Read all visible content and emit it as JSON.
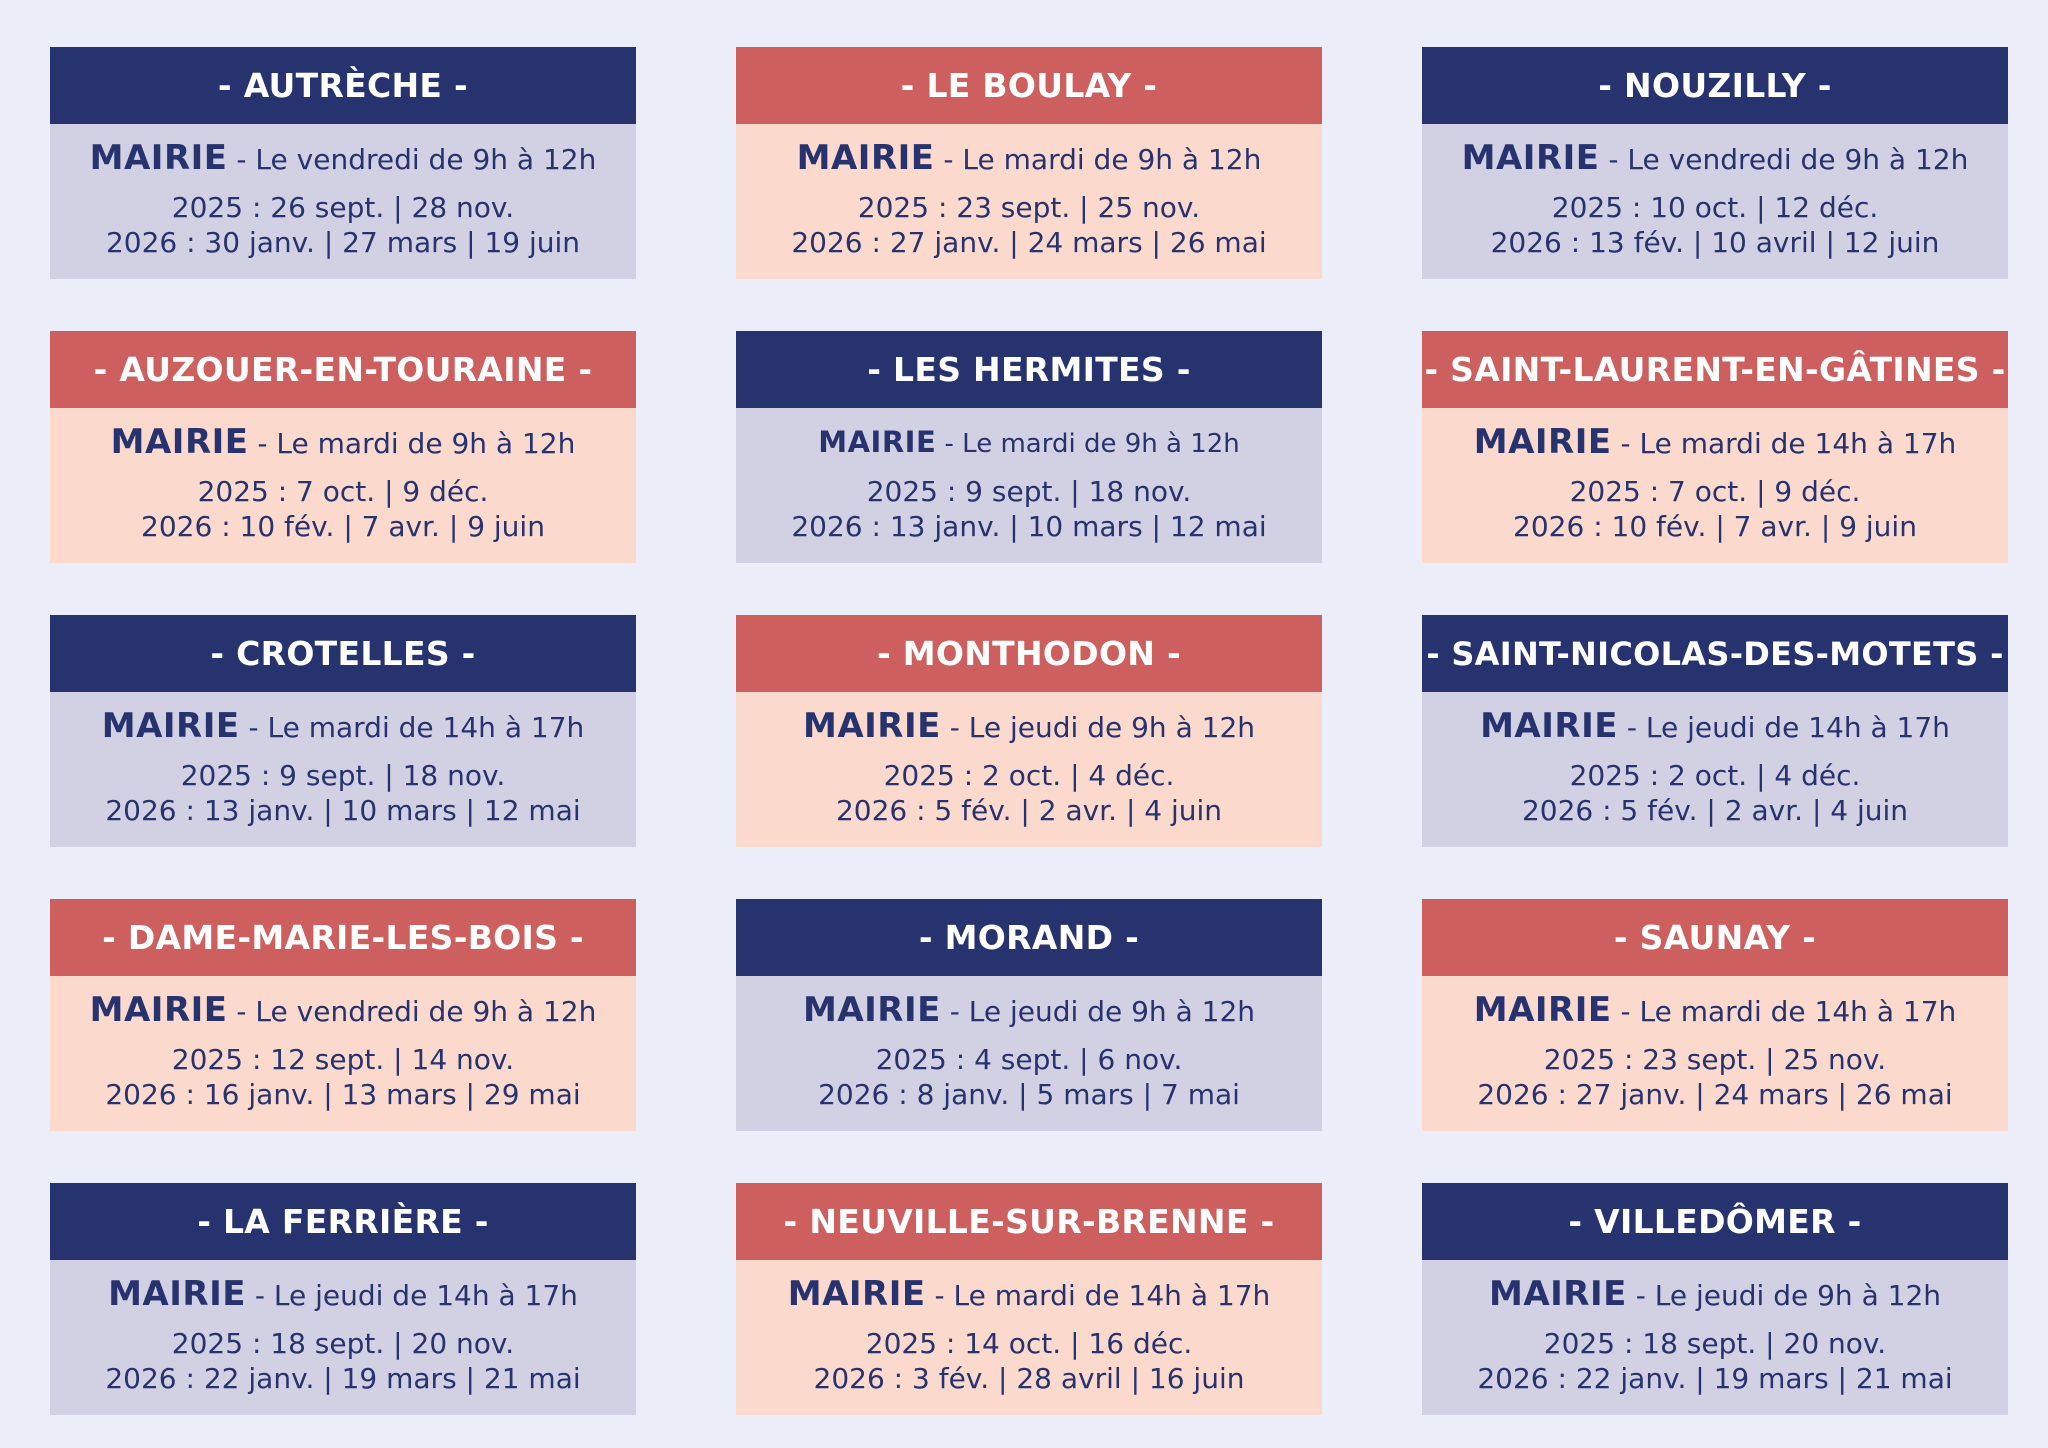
{
  "cards": [
    {
      "name": "- AUTRÈCHE -",
      "theme": "blue",
      "mairie": "MAIRIE",
      "schedule": " - Le vendredi de 9h à 12h",
      "dates_2025": "2025 : 26 sept. | 28 nov.",
      "dates_2026": "2026 :  30 janv. | 27 mars | 19 juin"
    },
    {
      "name": "- LE BOULAY -",
      "theme": "red",
      "mairie": "MAIRIE",
      "schedule": " - Le mardi de 9h à 12h",
      "dates_2025": "2025 : 23 sept. | 25 nov.",
      "dates_2026": "2026 :  27 janv. | 24 mars | 26 mai"
    },
    {
      "name": "- NOUZILLY -",
      "theme": "blue",
      "mairie": "MAIRIE",
      "schedule": " - Le vendredi de 9h à 12h",
      "dates_2025": "2025 : 10 oct. | 12 déc.",
      "dates_2026": "2026 :  13 fév. | 10 avril | 12 juin"
    },
    {
      "name": "- AUZOUER-EN-TOURAINE -",
      "theme": "red",
      "mairie": "MAIRIE",
      "schedule": " - Le mardi de 9h à 12h",
      "dates_2025": "2025 : 7 oct. | 9 déc.",
      "dates_2026": "2026 :  10 fév. | 7 avr. | 9 juin"
    },
    {
      "name": "- LES HERMITES -",
      "theme": "blue",
      "mairie": "MAIRIE",
      "schedule": " - Le mardi de 9h à 12h",
      "dates_2025": "2025 : 9 sept. | 18 nov.",
      "dates_2026": "2026 :  13 janv. | 10 mars | 12 mai",
      "small": true
    },
    {
      "name": "- SAINT-LAURENT-EN-GÂTINES -",
      "theme": "red",
      "mairie": "MAIRIE",
      "schedule": " - Le mardi de 14h à 17h",
      "dates_2025": "2025 : 7 oct. | 9 déc.",
      "dates_2026": "2026 :  10 fév. | 7 avr. | 9 juin"
    },
    {
      "name": "- CROTELLES -",
      "theme": "blue",
      "mairie": "MAIRIE",
      "schedule": " - Le mardi de 14h à 17h",
      "dates_2025": "2025 : 9 sept. | 18 nov.",
      "dates_2026": "2026 :  13 janv. | 10 mars | 12 mai"
    },
    {
      "name": "- MONTHODON -",
      "theme": "red",
      "mairie": "MAIRIE",
      "schedule": " - Le jeudi de 9h à 12h",
      "dates_2025": "2025 : 2 oct. | 4 déc.",
      "dates_2026": "2026 :  5 fév. | 2 avr. | 4 juin"
    },
    {
      "name": "- SAINT-NICOLAS-DES-MOTETS -",
      "theme": "blue",
      "mairie": "MAIRIE",
      "schedule": " - Le jeudi de 14h à 17h",
      "dates_2025": "2025 : 2 oct. | 4 déc.",
      "dates_2026": "2026 :  5 fév. | 2 avr. | 4 juin"
    },
    {
      "name": "- DAME-MARIE-LES-BOIS -",
      "theme": "red",
      "mairie": "MAIRIE",
      "schedule": " - Le vendredi de 9h à 12h",
      "dates_2025": "2025 : 12 sept. | 14 nov.",
      "dates_2026": "2026 :  16 janv. | 13 mars | 29 mai"
    },
    {
      "name": "- MORAND -",
      "theme": "blue",
      "mairie": "MAIRIE",
      "schedule": " - Le jeudi de 9h à 12h",
      "dates_2025": "2025 : 4 sept. | 6 nov.",
      "dates_2026": "2026 :  8 janv. | 5 mars | 7 mai"
    },
    {
      "name": "- SAUNAY -",
      "theme": "red",
      "mairie": "MAIRIE",
      "schedule": " - Le mardi de 14h à 17h",
      "dates_2025": "2025 : 23 sept. | 25 nov.",
      "dates_2026": "2026 :  27 janv. | 24 mars | 26 mai"
    },
    {
      "name": "- LA FERRIÈRE -",
      "theme": "blue",
      "mairie": "MAIRIE",
      "schedule": " - Le jeudi de 14h à 17h",
      "dates_2025": "2025 : 18 sept. | 20 nov.",
      "dates_2026": "2026 :  22 janv. | 19 mars | 21 mai"
    },
    {
      "name": "- NEUVILLE-SUR-BRENNE -",
      "theme": "red",
      "mairie": "MAIRIE",
      "schedule": " - Le mardi de 14h à 17h",
      "dates_2025": "2025 : 14 oct. | 16 déc.",
      "dates_2026": "2026 :  3 fév. | 28 avril | 16 juin"
    },
    {
      "name": "- VILLEDÔMER -",
      "theme": "blue",
      "mairie": "MAIRIE",
      "schedule": " - Le jeudi de 9h à 12h",
      "dates_2025": "2025 : 18 sept. | 20 nov.",
      "dates_2026": "2026 :  22 janv. | 19 mars | 21 mai"
    }
  ],
  "colors": {
    "page_background": "#ebedf8",
    "navy_header": "#27336f",
    "lavender_body": "#d2d0e3",
    "coral_header": "#cd5f5f",
    "peach_body": "#fcd9cd",
    "text": "#27336f"
  }
}
